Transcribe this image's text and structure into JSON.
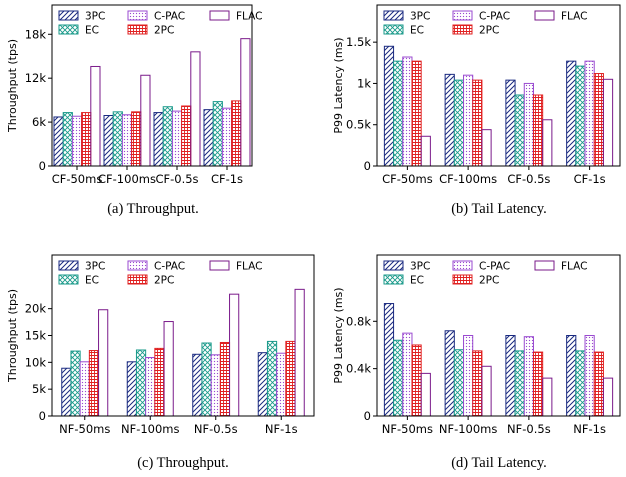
{
  "series_styles": [
    {
      "name": "3PC",
      "stroke": "#1a2a80",
      "pattern": "hatch"
    },
    {
      "name": "EC",
      "stroke": "#1a9a8a",
      "pattern": "cross"
    },
    {
      "name": "C-PAC",
      "stroke": "#9a4ad0",
      "pattern": "dots"
    },
    {
      "name": "2PC",
      "stroke": "#e02020",
      "pattern": "grid"
    },
    {
      "name": "FLAC",
      "stroke": "#7a1a8a",
      "pattern": "none"
    }
  ],
  "chart_data": [
    {
      "type": "bar",
      "caption": "(a)  Throughput.",
      "ylabel": "Throughput (tps)",
      "categories": [
        "CF-50ms",
        "CF-100ms",
        "CF-0.5s",
        "CF-1s"
      ],
      "ylim": [
        0,
        22000
      ],
      "yticks": [
        {
          "v": 0,
          "label": "0"
        },
        {
          "v": 6000,
          "label": "6k"
        },
        {
          "v": 12000,
          "label": "12k"
        },
        {
          "v": 18000,
          "label": "18k"
        }
      ],
      "series": [
        {
          "name": "3PC",
          "values": [
            6700,
            6900,
            7300,
            7700
          ]
        },
        {
          "name": "EC",
          "values": [
            7300,
            7400,
            8100,
            8800
          ]
        },
        {
          "name": "C-PAC",
          "values": [
            6800,
            7000,
            7500,
            7900
          ]
        },
        {
          "name": "2PC",
          "values": [
            7300,
            7400,
            8200,
            8900
          ]
        },
        {
          "name": "FLAC",
          "values": [
            13600,
            12400,
            15600,
            17400
          ]
        }
      ]
    },
    {
      "type": "bar",
      "caption": "(b)  Tail Latency.",
      "ylabel": "P99 Latency (ms)",
      "categories": [
        "CF-50ms",
        "CF-100ms",
        "CF-0.5s",
        "CF-1s"
      ],
      "ylim": [
        0,
        1.95
      ],
      "yticks": [
        {
          "v": 0,
          "label": "0"
        },
        {
          "v": 0.5,
          "label": "0.5k"
        },
        {
          "v": 1.0,
          "label": "1k"
        },
        {
          "v": 1.5,
          "label": "1.5k"
        }
      ],
      "series": [
        {
          "name": "3PC",
          "values": [
            1.45,
            1.11,
            1.04,
            1.27
          ]
        },
        {
          "name": "EC",
          "values": [
            1.27,
            1.04,
            0.86,
            1.21
          ]
        },
        {
          "name": "C-PAC",
          "values": [
            1.32,
            1.1,
            1.0,
            1.27
          ]
        },
        {
          "name": "2PC",
          "values": [
            1.27,
            1.04,
            0.86,
            1.12
          ]
        },
        {
          "name": "FLAC",
          "values": [
            0.36,
            0.44,
            0.56,
            1.05
          ]
        }
      ]
    },
    {
      "type": "bar",
      "caption": "(c)  Throughput.",
      "ylabel": "Throughput (tps)",
      "categories": [
        "NF-50ms",
        "NF-100ms",
        "NF-0.5s",
        "NF-1s"
      ],
      "ylim": [
        0,
        30000
      ],
      "yticks": [
        {
          "v": 0,
          "label": "0"
        },
        {
          "v": 5000,
          "label": "5k"
        },
        {
          "v": 10000,
          "label": "10k"
        },
        {
          "v": 15000,
          "label": "15k"
        },
        {
          "v": 20000,
          "label": "20k"
        }
      ],
      "series": [
        {
          "name": "3PC",
          "values": [
            8900,
            10100,
            11500,
            11800
          ]
        },
        {
          "name": "EC",
          "values": [
            12100,
            12300,
            13600,
            13900
          ]
        },
        {
          "name": "C-PAC",
          "values": [
            10100,
            10900,
            11400,
            11700
          ]
        },
        {
          "name": "2PC",
          "values": [
            12200,
            12600,
            13700,
            13900
          ]
        },
        {
          "name": "FLAC",
          "values": [
            19800,
            17600,
            22700,
            23600
          ]
        }
      ]
    },
    {
      "type": "bar",
      "caption": "(d)  Tail Latency.",
      "ylabel": "P99 Latency (ms)",
      "categories": [
        "NF-50ms",
        "NF-100ms",
        "NF-0.5s",
        "NF-1s"
      ],
      "ylim": [
        0,
        1.36
      ],
      "yticks": [
        {
          "v": 0,
          "label": "0"
        },
        {
          "v": 0.4,
          "label": "0.4k"
        },
        {
          "v": 0.8,
          "label": "0.8k"
        }
      ],
      "series": [
        {
          "name": "3PC",
          "values": [
            0.95,
            0.72,
            0.68,
            0.68
          ]
        },
        {
          "name": "EC",
          "values": [
            0.64,
            0.56,
            0.55,
            0.55
          ]
        },
        {
          "name": "C-PAC",
          "values": [
            0.7,
            0.68,
            0.67,
            0.68
          ]
        },
        {
          "name": "2PC",
          "values": [
            0.6,
            0.55,
            0.54,
            0.54
          ]
        },
        {
          "name": "FLAC",
          "values": [
            0.36,
            0.42,
            0.32,
            0.32
          ]
        }
      ]
    }
  ]
}
